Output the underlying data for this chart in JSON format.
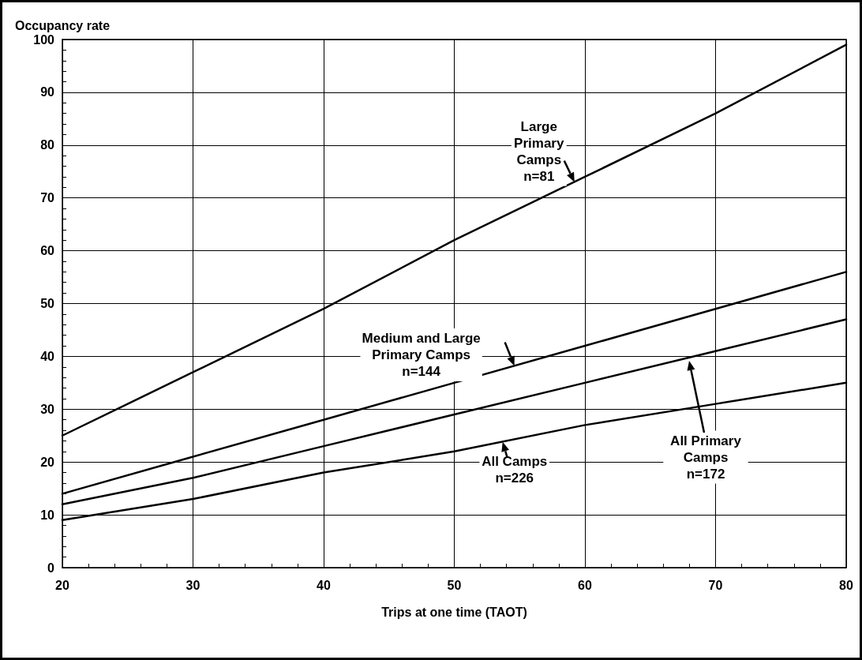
{
  "chart_data": {
    "type": "line",
    "xlabel": "Trips at one time (TAOT)",
    "ylabel": "Occupancy rate",
    "x": [
      20,
      30,
      40,
      50,
      60,
      70,
      80
    ],
    "series": [
      {
        "color": "#000000",
        "values": [
          25,
          37,
          49,
          62,
          74,
          86,
          99
        ]
      },
      {
        "color": "#000000",
        "values": [
          14,
          21,
          28,
          35,
          42,
          49,
          56
        ]
      },
      {
        "color": "#000000",
        "values": [
          12,
          17,
          23,
          29,
          35,
          41,
          47
        ]
      },
      {
        "color": "#000000",
        "values": [
          9,
          13,
          18,
          22,
          27,
          31,
          35
        ]
      }
    ],
    "xlim": [
      20,
      80
    ],
    "xticks": [
      20,
      30,
      40,
      50,
      60,
      70,
      80
    ],
    "ylim": [
      0,
      100
    ],
    "yticks": [
      0,
      10,
      20,
      30,
      40,
      50,
      60,
      70,
      80,
      90,
      100
    ],
    "grid": true,
    "marker": "none",
    "line_style": "solid",
    "annotations": [
      {
        "text": "Large\nPrimary\nCamps\nn=81",
        "x": 59.2,
        "y": 73
      },
      {
        "text": "Medium and Large\nPrimary Camps\nn=144",
        "x": 54.6,
        "y": 38.2
      },
      "All Primary\nCamps\nn=172",
      {
        "text": "All Camps\nn=226",
        "x": 53.7,
        "y": 23.8
      }
    ]
  }
}
